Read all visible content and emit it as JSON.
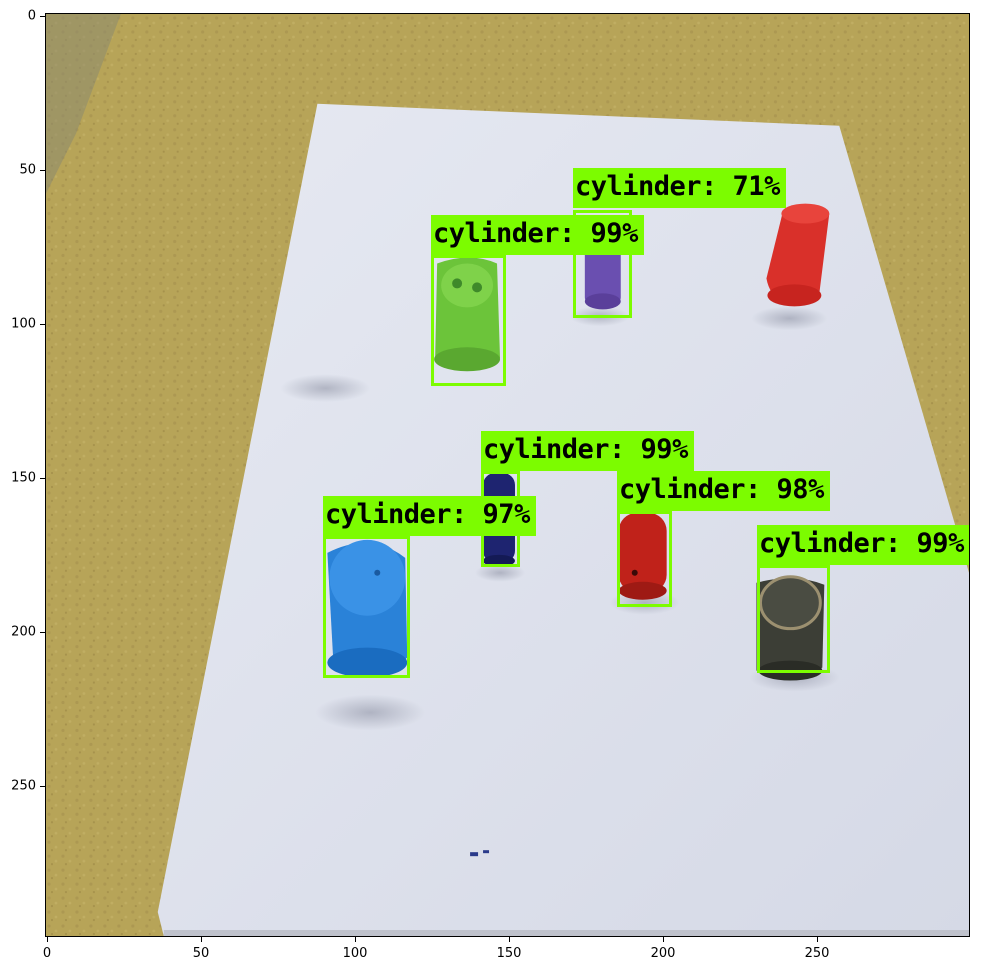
{
  "axes": {
    "x_ticks": [
      "0",
      "50",
      "100",
      "150",
      "200",
      "250"
    ],
    "y_ticks": [
      "0",
      "50",
      "100",
      "150",
      "200",
      "250"
    ]
  },
  "detections": [
    {
      "label": "cylinder:  71%",
      "object_color": "#6a4fb0"
    },
    {
      "label": "cylinder:  99%",
      "object_color": "#6cc43a"
    },
    {
      "label": "cylinder:  99%",
      "object_color": "#1e2470"
    },
    {
      "label": "cylinder:  98%",
      "object_color": "#c0221a"
    },
    {
      "label": "cylinder:  97%",
      "object_color": "#2a82d8"
    },
    {
      "label": "cylinder:  99%",
      "object_color": "#3c3e36"
    }
  ],
  "colors": {
    "box": "#7cfc00",
    "floor": "#b8a458",
    "board": "#dfe3ee"
  }
}
